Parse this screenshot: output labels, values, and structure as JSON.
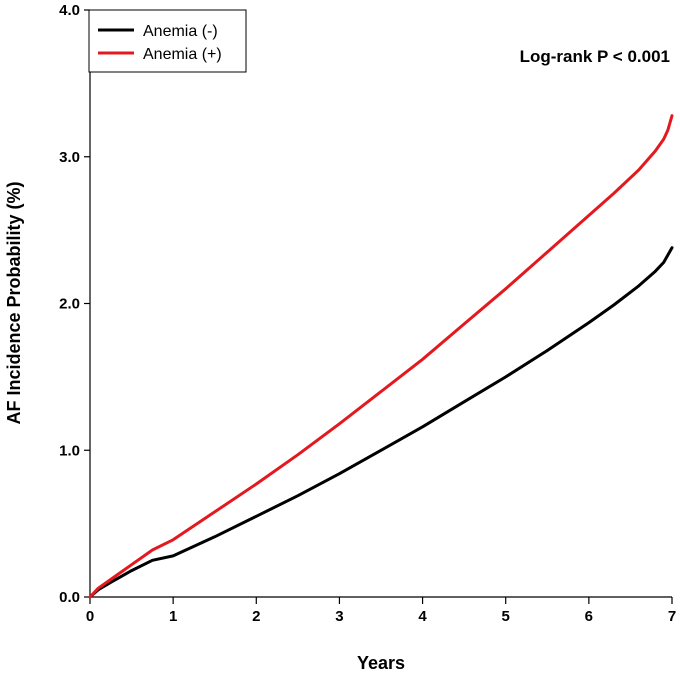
{
  "chart_data": {
    "type": "line",
    "xlabel": "Years",
    "ylabel": "AF Incidence Probability (%)",
    "xlim": [
      0,
      7
    ],
    "ylim": [
      0,
      4.0
    ],
    "x_ticks": [
      0,
      1,
      2,
      3,
      4,
      5,
      6,
      7
    ],
    "x_tick_labels": [
      "0",
      "1",
      "2",
      "3",
      "4",
      "5",
      "6",
      "7"
    ],
    "y_ticks": [
      0,
      1,
      2,
      3,
      4
    ],
    "y_tick_labels": [
      "0.0",
      "1.0",
      "2.0",
      "3.0",
      "4.0"
    ],
    "grid": false,
    "legend_position": "top-left",
    "annotation": "Log-rank P < 0.001",
    "series": [
      {
        "name": "Anemia (-)",
        "color": "#000000",
        "x": [
          0,
          0.1,
          0.25,
          0.5,
          0.75,
          1,
          1.5,
          2,
          2.5,
          3,
          3.5,
          4,
          4.5,
          5,
          5.5,
          6,
          6.3,
          6.6,
          6.8,
          6.9,
          7.0
        ],
        "y": [
          0,
          0.05,
          0.1,
          0.18,
          0.25,
          0.28,
          0.41,
          0.55,
          0.69,
          0.84,
          1.0,
          1.16,
          1.33,
          1.5,
          1.68,
          1.87,
          1.99,
          2.12,
          2.22,
          2.28,
          2.38
        ]
      },
      {
        "name": "Anemia (+)",
        "color": "#e3191f",
        "x": [
          0,
          0.1,
          0.25,
          0.5,
          0.75,
          1,
          1.5,
          2,
          2.5,
          3,
          3.5,
          4,
          4.5,
          5,
          5.5,
          6,
          6.3,
          6.6,
          6.8,
          6.9,
          6.95,
          7.0
        ],
        "y": [
          0,
          0.06,
          0.12,
          0.22,
          0.32,
          0.39,
          0.58,
          0.77,
          0.97,
          1.18,
          1.4,
          1.62,
          1.86,
          2.1,
          2.35,
          2.6,
          2.75,
          2.91,
          3.04,
          3.12,
          3.18,
          3.28
        ]
      }
    ]
  }
}
